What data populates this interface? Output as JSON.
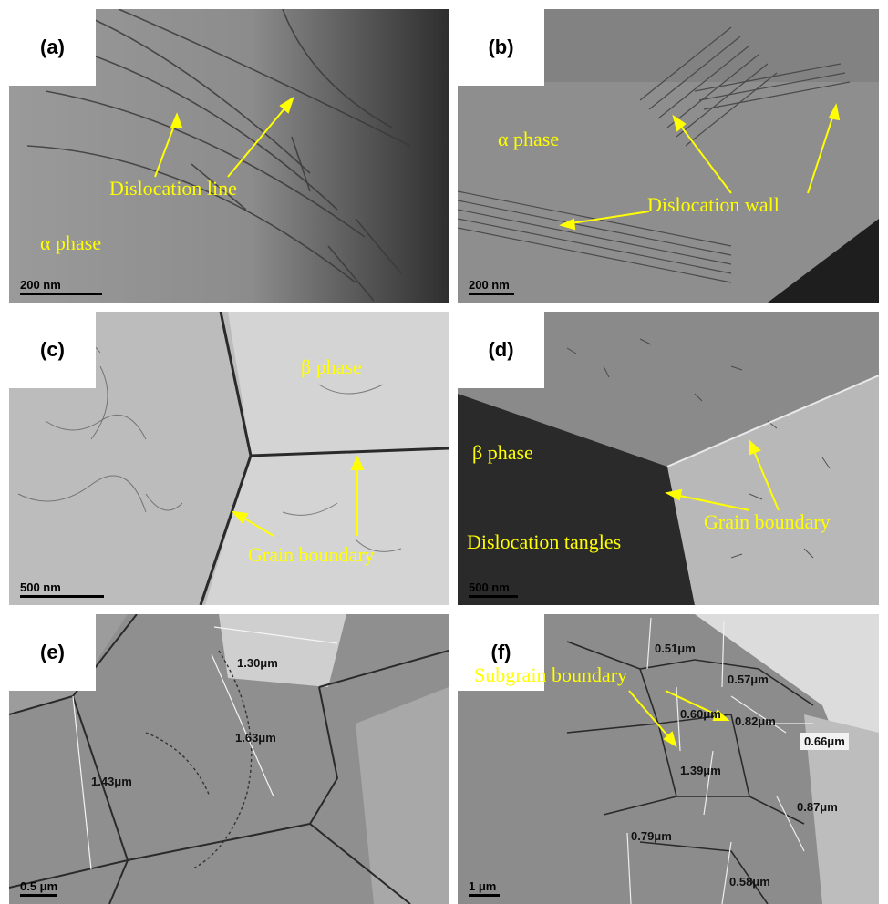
{
  "panels": {
    "a": {
      "label": "(a)",
      "scale": "200 nm",
      "annotations": {
        "dislocation_line": "Dislocation line",
        "alpha_phase": "α phase"
      }
    },
    "b": {
      "label": "(b)",
      "scale": "200 nm",
      "annotations": {
        "alpha_phase": "α phase",
        "dislocation_wall": "Dislocation wall"
      }
    },
    "c": {
      "label": "(c)",
      "scale": "500 nm",
      "annotations": {
        "beta_phase": "β phase",
        "grain_boundary": "Grain boundary"
      }
    },
    "d": {
      "label": "(d)",
      "scale": "500 nm",
      "annotations": {
        "beta_phase": "β phase",
        "dislocation_tangles": "Dislocation tangles",
        "grain_boundary": "Grain boundary"
      }
    },
    "e": {
      "label": "(e)",
      "scale": "0.5 μm",
      "measurements": [
        "1.30μm",
        "1.63μm",
        "1.43μm"
      ]
    },
    "f": {
      "label": "(f)",
      "scale": "1 μm",
      "annotations": {
        "subgrain_boundary": "Subgrain boundary"
      },
      "measurements": [
        "0.51μm",
        "0.57μm",
        "0.60μm",
        "0.82μm",
        "0.66μm",
        "1.39μm",
        "0.87μm",
        "0.79μm",
        "0.58μm"
      ]
    }
  },
  "colors": {
    "annotation": "#ffff00",
    "label_bg": "#ffffff"
  }
}
